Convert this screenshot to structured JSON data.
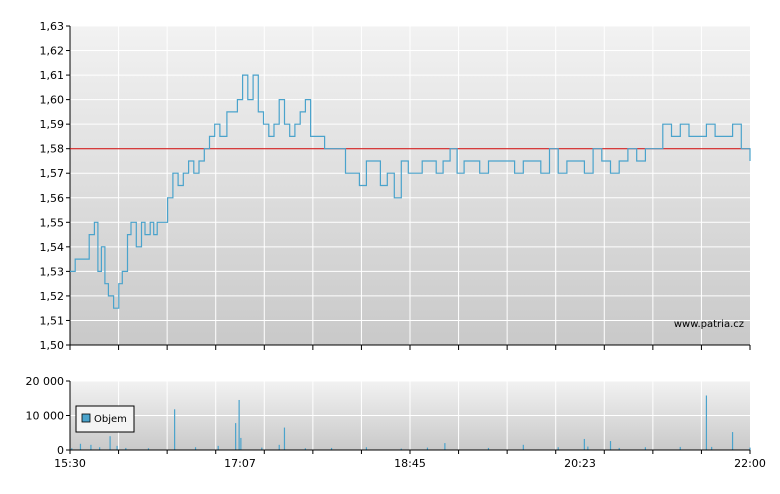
{
  "chart_data": [
    {
      "type": "line",
      "x_ticks": [
        "15:30",
        "17:07",
        "18:45",
        "20:23",
        "22:00"
      ],
      "y_ticks": [
        "1,50",
        "1,51",
        "1,52",
        "1,53",
        "1,54",
        "1,55",
        "1,56",
        "1,57",
        "1,58",
        "1,59",
        "1,60",
        "1,61",
        "1,62",
        "1,63"
      ],
      "ylim": [
        1.5,
        1.63
      ],
      "xlim": [
        "15:30",
        "22:00"
      ],
      "grid": true,
      "reference_line": {
        "value": 1.58,
        "color": "#cc0000"
      },
      "line_color": "#4aa3cc",
      "watermark": "www.patria.cz",
      "series": [
        {
          "x": [
            "15:30",
            "15:33",
            "15:37",
            "15:41",
            "15:44",
            "15:46",
            "15:48",
            "15:50",
            "15:52",
            "15:55",
            "15:58",
            "16:00",
            "16:03",
            "16:05",
            "16:08",
            "16:11",
            "16:13",
            "16:16",
            "16:18",
            "16:20",
            "16:23",
            "16:26",
            "16:29",
            "16:32",
            "16:35",
            "16:38",
            "16:41",
            "16:44",
            "16:47",
            "16:50",
            "16:53",
            "16:56",
            "17:00",
            "17:03",
            "17:06",
            "17:09",
            "17:12",
            "17:15",
            "17:18",
            "17:21",
            "17:24",
            "17:27",
            "17:30",
            "17:33",
            "17:36",
            "17:39",
            "17:42",
            "17:45",
            "17:48",
            "17:52",
            "17:56",
            "18:00",
            "18:04",
            "18:08",
            "18:12",
            "18:16",
            "18:20",
            "18:24",
            "18:28",
            "18:32",
            "18:36",
            "18:40",
            "18:44",
            "18:48",
            "18:52",
            "18:56",
            "19:00",
            "19:04",
            "19:08",
            "19:12",
            "19:16",
            "19:20",
            "19:25",
            "19:30",
            "19:35",
            "19:40",
            "19:45",
            "19:50",
            "19:55",
            "20:00",
            "20:05",
            "20:10",
            "20:15",
            "20:20",
            "20:25",
            "20:30",
            "20:35",
            "20:40",
            "20:45",
            "20:50",
            "20:55",
            "21:00",
            "21:05",
            "21:10",
            "21:15",
            "21:20",
            "21:25",
            "21:30",
            "21:35",
            "21:40",
            "21:45",
            "21:50",
            "21:55",
            "22:00"
          ],
          "values": [
            1.53,
            1.535,
            1.535,
            1.545,
            1.55,
            1.53,
            1.54,
            1.525,
            1.52,
            1.515,
            1.525,
            1.53,
            1.545,
            1.55,
            1.54,
            1.55,
            1.545,
            1.55,
            1.545,
            1.55,
            1.55,
            1.56,
            1.57,
            1.565,
            1.57,
            1.575,
            1.57,
            1.575,
            1.58,
            1.585,
            1.59,
            1.585,
            1.595,
            1.595,
            1.6,
            1.61,
            1.6,
            1.61,
            1.595,
            1.59,
            1.585,
            1.59,
            1.6,
            1.59,
            1.585,
            1.59,
            1.595,
            1.6,
            1.585,
            1.585,
            1.58,
            1.58,
            1.58,
            1.57,
            1.57,
            1.565,
            1.575,
            1.575,
            1.565,
            1.57,
            1.56,
            1.575,
            1.57,
            1.57,
            1.575,
            1.575,
            1.57,
            1.575,
            1.58,
            1.57,
            1.575,
            1.575,
            1.57,
            1.575,
            1.575,
            1.575,
            1.57,
            1.575,
            1.575,
            1.57,
            1.58,
            1.57,
            1.575,
            1.575,
            1.57,
            1.58,
            1.575,
            1.57,
            1.575,
            1.58,
            1.575,
            1.58,
            1.58,
            1.59,
            1.585,
            1.59,
            1.585,
            1.585,
            1.59,
            1.585,
            1.585,
            1.59,
            1.58,
            1.575
          ]
        }
      ]
    },
    {
      "type": "bar",
      "x_ticks": [
        "15:30",
        "17:07",
        "18:45",
        "20:23",
        "22:00"
      ],
      "y_ticks": [
        "0",
        "10 000",
        "20 000"
      ],
      "ylim": [
        0,
        20000
      ],
      "grid": true,
      "legend": "Objem",
      "legend_position": "bottom-left",
      "bar_color": "#4aa3cc",
      "series": [
        {
          "name": "Objem",
          "x": [
            "15:31",
            "15:36",
            "15:42",
            "15:47",
            "15:53",
            "15:57",
            "16:02",
            "16:15",
            "16:30",
            "16:42",
            "16:55",
            "17:05",
            "17:07",
            "17:08",
            "17:20",
            "17:30",
            "17:33",
            "17:45",
            "18:00",
            "18:20",
            "18:40",
            "18:55",
            "19:05",
            "19:30",
            "19:50",
            "20:10",
            "20:25",
            "20:27",
            "20:40",
            "20:45",
            "21:00",
            "21:20",
            "21:35",
            "21:38",
            "21:50",
            "22:00"
          ],
          "values": [
            500,
            1800,
            1500,
            800,
            4000,
            1200,
            600,
            500,
            11800,
            800,
            1200,
            7800,
            14500,
            3500,
            700,
            1500,
            6500,
            500,
            600,
            800,
            400,
            700,
            2000,
            600,
            1500,
            800,
            3200,
            1000,
            2600,
            600,
            800,
            900,
            15800,
            900,
            5200,
            700
          ]
        }
      ]
    }
  ]
}
